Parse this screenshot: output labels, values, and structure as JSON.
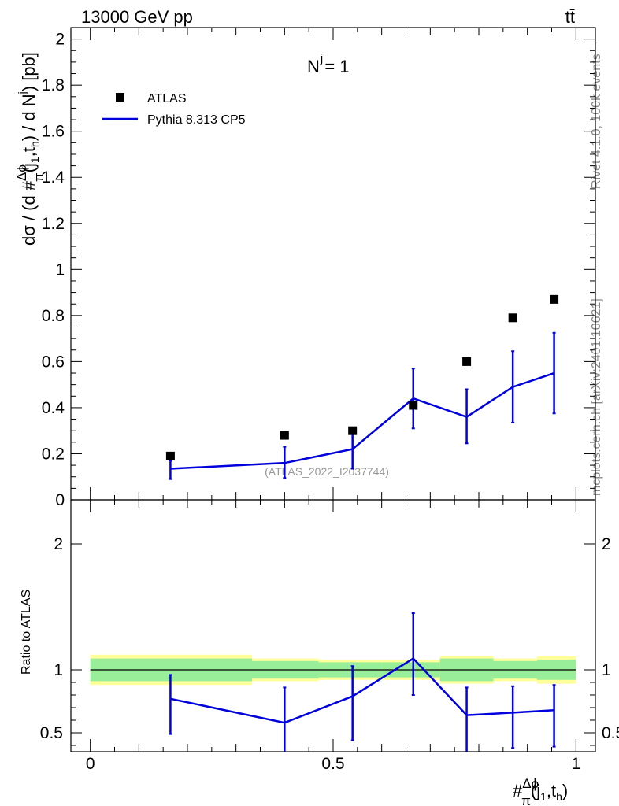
{
  "header": {
    "energy_label": "13000 GeV pp",
    "process_label": "tt̄"
  },
  "side_text": {
    "rivet": "Rivet 4.1.0,  100k events",
    "mcplots": "mcplots.cern.ch [arXiv:2401.10621]"
  },
  "analysis_label": "(ATLAS_2022_I2037744)",
  "colors": {
    "data": "#000000",
    "mc": "#0000dd",
    "band_inner": "#99ee99",
    "band_outer": "#ffff99"
  },
  "chart_data": [
    {
      "type": "scatter",
      "panel": "main",
      "title": "N^j = 1",
      "title_main": "N",
      "title_sup": "j",
      "title_rest": " = 1",
      "ylabel": "dσ / (d #Δϕ/π(j1,th) / d N^j) [pb]",
      "ylabel_parts": {
        "a": "dσ / (d #",
        "num": "Δϕ",
        "den": "π",
        "b": "(j",
        "s1": "1",
        "c": ",t",
        "s2": "h",
        "d": ") / d N",
        "sup": "j",
        "e": ") [pb]"
      },
      "xlim": [
        -0.04,
        1.04
      ],
      "ylim": [
        0,
        2.05
      ],
      "yticks": [
        0,
        0.2,
        0.4,
        0.6,
        0.8,
        1,
        1.2,
        1.4,
        1.6,
        1.8,
        2
      ],
      "ytick_labels": [
        "0",
        "0.2",
        "0.4",
        "0.6",
        "0.8",
        "1",
        "1.2",
        "1.4",
        "1.6",
        "1.8",
        "2"
      ],
      "legend": {
        "position": "top-left",
        "data_label": "ATLAS",
        "mc_label": "Pythia 8.313 CP5"
      },
      "series": [
        {
          "name": "ATLAS",
          "style": "markers",
          "x": [
            0.165,
            0.4,
            0.54,
            0.665,
            0.775,
            0.87,
            0.955
          ],
          "y": [
            0.19,
            0.28,
            0.3,
            0.41,
            0.6,
            0.79,
            0.87
          ]
        },
        {
          "name": "Pythia 8.313 CP5",
          "style": "line",
          "x": [
            0.165,
            0.4,
            0.54,
            0.665,
            0.775,
            0.87,
            0.955
          ],
          "y": [
            0.135,
            0.16,
            0.22,
            0.44,
            0.36,
            0.49,
            0.55
          ],
          "err_low": [
            0.09,
            0.095,
            0.135,
            0.31,
            0.245,
            0.335,
            0.375
          ],
          "err_high": [
            0.17,
            0.23,
            0.305,
            0.57,
            0.48,
            0.645,
            0.725
          ]
        }
      ]
    },
    {
      "type": "scatter",
      "panel": "ratio",
      "ylabel": "Ratio to ATLAS",
      "xlabel": "#Δϕ/π(j1,th)",
      "xlabel_parts": {
        "hash": "#",
        "num": "Δϕ",
        "den": "π",
        "b": "(j",
        "s1": "1",
        "c": ",t",
        "s2": "h",
        "d": ")"
      },
      "xlim": [
        -0.04,
        1.04
      ],
      "xticks": [
        0,
        0.5,
        1
      ],
      "xtick_labels": [
        "0",
        "0.5",
        "1"
      ],
      "ylim": [
        0.35,
        2.35
      ],
      "yticks": [
        0.5,
        1,
        2
      ],
      "ytick_labels": [
        "0.5",
        "1",
        "2"
      ],
      "uncertainty_bands": {
        "bin_edges": [
          0,
          0.333,
          0.47,
          0.6,
          0.72,
          0.83,
          0.92,
          1.0
        ],
        "inner_low": [
          0.91,
          0.93,
          0.94,
          0.94,
          0.91,
          0.93,
          0.92
        ],
        "inner_high": [
          1.09,
          1.07,
          1.06,
          1.06,
          1.09,
          1.07,
          1.08
        ],
        "outer_low": [
          0.88,
          0.91,
          0.92,
          0.92,
          0.89,
          0.91,
          0.89
        ],
        "outer_high": [
          1.12,
          1.09,
          1.08,
          1.08,
          1.11,
          1.09,
          1.11
        ]
      },
      "series": [
        {
          "name": "Pythia 8.313 CP5 / ATLAS",
          "style": "line",
          "x": [
            0.165,
            0.4,
            0.54,
            0.665,
            0.775,
            0.87,
            0.955
          ],
          "y": [
            0.77,
            0.58,
            0.79,
            1.09,
            0.64,
            0.66,
            0.68
          ],
          "err_low": [
            0.49,
            0.33,
            0.44,
            0.8,
            0.35,
            0.38,
            0.39
          ],
          "err_high": [
            0.96,
            0.86,
            1.03,
            1.45,
            0.86,
            0.87,
            0.88
          ]
        }
      ]
    }
  ]
}
